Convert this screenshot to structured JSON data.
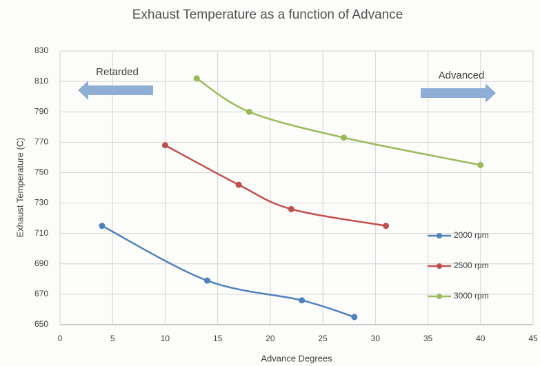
{
  "chart_data": {
    "type": "line",
    "title": "Exhaust Temperature as a function of Advance",
    "xlabel": "Advance Degrees",
    "ylabel": "Exhaust Temperature  (C)",
    "annotations": [
      "Retarded",
      "Advanced"
    ],
    "series": [
      {
        "name": "2000 rpm",
        "color": "#4f81bd",
        "x": [
          4,
          14,
          23,
          28
        ],
        "values": [
          715,
          679,
          666,
          655
        ]
      },
      {
        "name": "2500 rpm",
        "color": "#c0504d",
        "x": [
          10,
          17,
          22,
          31
        ],
        "values": [
          768,
          742,
          726,
          715
        ]
      },
      {
        "name": "3000 rpm",
        "color": "#9bbb59",
        "x": [
          13,
          18,
          27,
          40
        ],
        "values": [
          812,
          790,
          773,
          755
        ]
      }
    ],
    "xlim": [
      0,
      45
    ],
    "xticks": [
      0,
      5,
      10,
      15,
      20,
      25,
      30,
      35,
      40,
      45
    ],
    "ylim": [
      650,
      830
    ],
    "yticks": [
      650,
      670,
      690,
      710,
      730,
      750,
      770,
      790,
      810,
      830
    ],
    "grid": true
  }
}
